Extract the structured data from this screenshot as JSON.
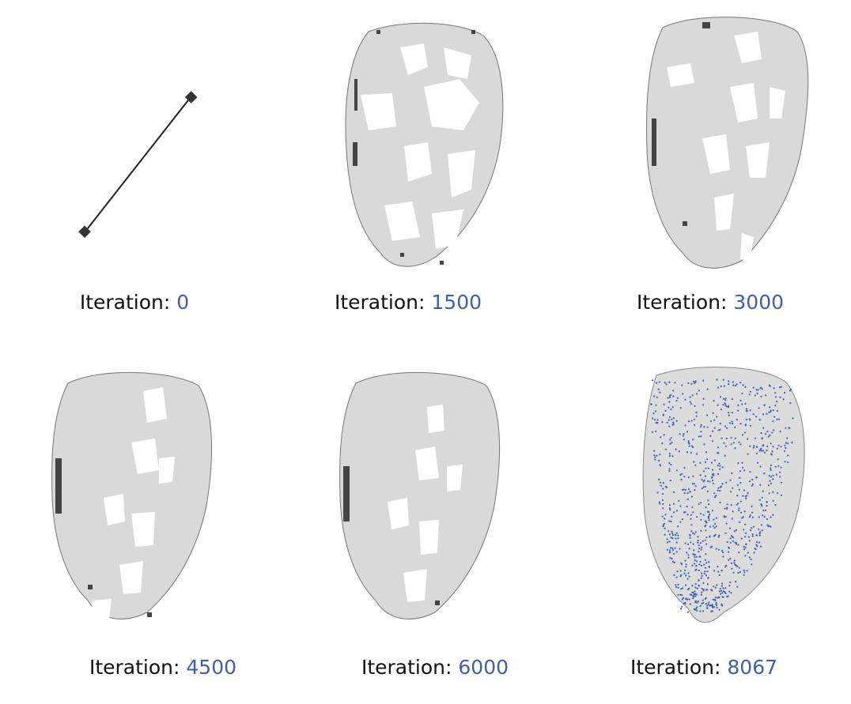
{
  "caption_label": "Iteration: ",
  "accent_color": "#3f5fb5",
  "mesh_color": "#dadada",
  "panels": [
    {
      "iteration": "0",
      "stage": "seed-edge"
    },
    {
      "iteration": "1500",
      "stage": "partial-mesh"
    },
    {
      "iteration": "3000",
      "stage": "partial-mesh"
    },
    {
      "iteration": "4500",
      "stage": "partial-mesh"
    },
    {
      "iteration": "6000",
      "stage": "partial-mesh"
    },
    {
      "iteration": "8067",
      "stage": "complete-mesh-with-points"
    }
  ]
}
